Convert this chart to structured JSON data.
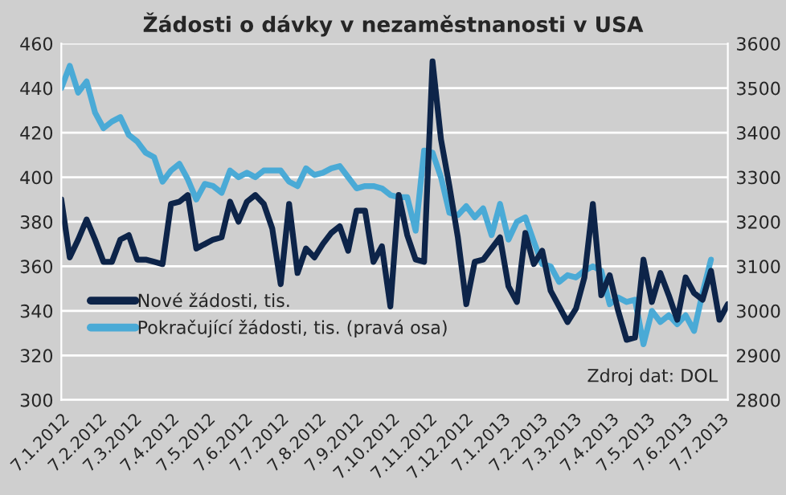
{
  "chart_data": {
    "type": "line",
    "title": "Žádosti o dávky v nezaměstnanosti v USA",
    "x": [
      "2012-01-07",
      "2012-01-14",
      "2012-01-21",
      "2012-01-28",
      "2012-02-04",
      "2012-02-11",
      "2012-02-18",
      "2012-02-25",
      "2012-03-03",
      "2012-03-10",
      "2012-03-17",
      "2012-03-24",
      "2012-03-31",
      "2012-04-07",
      "2012-04-14",
      "2012-04-21",
      "2012-04-28",
      "2012-05-05",
      "2012-05-12",
      "2012-05-19",
      "2012-05-26",
      "2012-06-02",
      "2012-06-09",
      "2012-06-16",
      "2012-06-23",
      "2012-06-30",
      "2012-07-07",
      "2012-07-14",
      "2012-07-21",
      "2012-07-28",
      "2012-08-04",
      "2012-08-11",
      "2012-08-18",
      "2012-08-25",
      "2012-09-01",
      "2012-09-08",
      "2012-09-15",
      "2012-09-22",
      "2012-09-29",
      "2012-10-06",
      "2012-10-13",
      "2012-10-20",
      "2012-10-27",
      "2012-11-03",
      "2012-11-10",
      "2012-11-17",
      "2012-11-24",
      "2012-12-01",
      "2012-12-08",
      "2012-12-15",
      "2012-12-22",
      "2012-12-29",
      "2013-01-05",
      "2013-01-12",
      "2013-01-19",
      "2013-01-26",
      "2013-02-02",
      "2013-02-09",
      "2013-02-16",
      "2013-02-23",
      "2013-03-02",
      "2013-03-09",
      "2013-03-16",
      "2013-03-23",
      "2013-03-30",
      "2013-04-06",
      "2013-04-13",
      "2013-04-20",
      "2013-04-27",
      "2013-05-04",
      "2013-05-11",
      "2013-05-18",
      "2013-05-25",
      "2013-06-01",
      "2013-06-08",
      "2013-06-15",
      "2013-06-22",
      "2013-06-29",
      "2013-07-06",
      "2013-07-13"
    ],
    "series": [
      {
        "name": "Nové žádosti, tis.",
        "color": "#0d2449",
        "values": [
          390,
          364,
          372,
          381,
          372,
          362,
          362,
          372,
          374,
          363,
          363,
          362,
          361,
          388,
          389,
          392,
          368,
          370,
          372,
          373,
          389,
          380,
          389,
          392,
          388,
          377,
          352,
          388,
          357,
          368,
          364,
          370,
          375,
          378,
          367,
          385,
          385,
          362,
          369,
          342,
          392,
          374,
          363,
          362,
          452,
          417,
          396,
          373,
          343,
          362,
          363,
          368,
          373,
          351,
          344,
          375,
          361,
          367,
          349,
          342,
          335,
          341,
          355,
          388,
          347,
          356,
          340,
          327,
          328,
          363,
          344,
          357,
          347,
          336,
          355,
          348,
          345,
          358,
          336,
          343
        ]
      },
      {
        "name": "Pokračující žádosti, tis. (pravá osa)",
        "color": "#4aaad6",
        "axis": "y2",
        "values": [
          3500,
          3550,
          3490,
          3515,
          3445,
          3410,
          3425,
          3435,
          3395,
          3380,
          3355,
          3345,
          3290,
          3315,
          3330,
          3295,
          3250,
          3285,
          3280,
          3265,
          3315,
          3300,
          3310,
          3300,
          3315,
          3315,
          3315,
          3290,
          3280,
          3320,
          3305,
          3310,
          3320,
          3325,
          3300,
          3275,
          3280,
          3280,
          3275,
          3260,
          3255,
          3255,
          3180,
          3360,
          3355,
          3300,
          3220,
          3215,
          3235,
          3210,
          3230,
          3170,
          3240,
          3160,
          3200,
          3210,
          3156,
          3105,
          3100,
          3065,
          3080,
          3075,
          3090,
          3100,
          3090,
          3015,
          3030,
          3020,
          3025,
          2925,
          3000,
          2975,
          2990,
          2970,
          2990,
          2955,
          3040,
          3115,
          null,
          null
        ]
      }
    ],
    "xlim": [
      "2012-01-07",
      "2013-07-13"
    ],
    "xticks": [
      {
        "value": "2012-01-07",
        "label": "7.1.2012"
      },
      {
        "value": "2012-02-07",
        "label": "7.2.2012"
      },
      {
        "value": "2012-03-07",
        "label": "7.3.2012"
      },
      {
        "value": "2012-04-07",
        "label": "7.4.2012"
      },
      {
        "value": "2012-05-07",
        "label": "7.5.2012"
      },
      {
        "value": "2012-06-07",
        "label": "7.6.2012"
      },
      {
        "value": "2012-07-07",
        "label": "7.7.2012"
      },
      {
        "value": "2012-08-07",
        "label": "7.8.2012"
      },
      {
        "value": "2012-09-07",
        "label": "7.9.2012"
      },
      {
        "value": "2012-10-07",
        "label": "7.10.2012"
      },
      {
        "value": "2012-11-07",
        "label": "7.11.2012"
      },
      {
        "value": "2012-12-07",
        "label": "7.12.2012"
      },
      {
        "value": "2013-01-07",
        "label": "7.1.2013"
      },
      {
        "value": "2013-02-07",
        "label": "7.2.2013"
      },
      {
        "value": "2013-03-07",
        "label": "7.3.2013"
      },
      {
        "value": "2013-04-07",
        "label": "7.4.2013"
      },
      {
        "value": "2013-05-07",
        "label": "7.5.2013"
      },
      {
        "value": "2013-06-07",
        "label": "7.6.2013"
      },
      {
        "value": "2013-07-07",
        "label": "7.7.2013"
      }
    ],
    "ylim": [
      300,
      460
    ],
    "yticks": [
      300,
      320,
      340,
      360,
      380,
      400,
      420,
      440,
      460
    ],
    "y2lim": [
      2800,
      3600
    ],
    "y2ticks": [
      2800,
      2900,
      3000,
      3100,
      3200,
      3300,
      3400,
      3500,
      3600
    ],
    "grid": "y",
    "legend": "bottom left",
    "marker": "none",
    "line_style": "solid",
    "annotations": [
      "Zdroj dat: DOL"
    ]
  }
}
